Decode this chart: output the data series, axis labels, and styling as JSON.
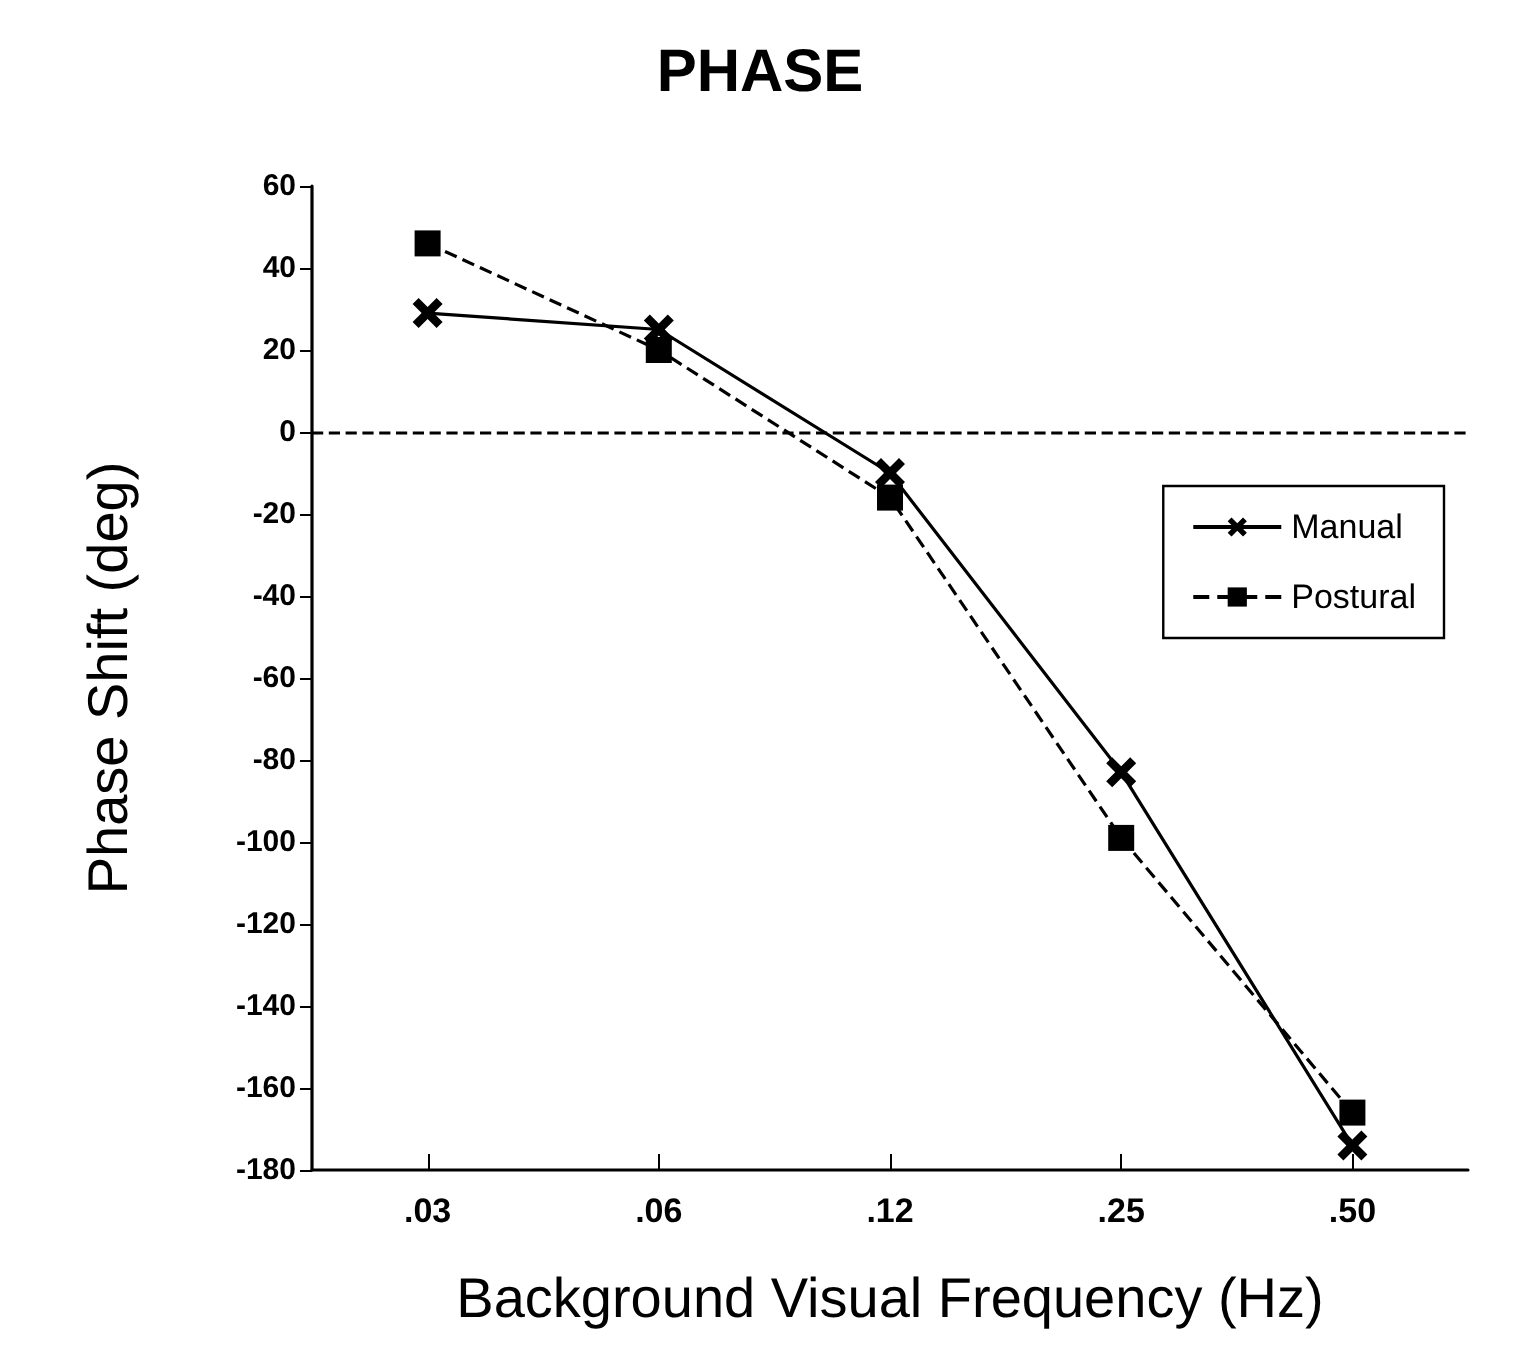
{
  "chart_data": {
    "type": "line",
    "title": "PHASE",
    "xlabel": "Background Visual Frequency (Hz)",
    "ylabel": "Phase Shift (deg)",
    "categories": [
      ".03",
      ".06",
      ".12",
      ".25",
      ".50"
    ],
    "series": [
      {
        "name": "Manual",
        "color": "#000000",
        "values": [
          29,
          25,
          -10,
          -83,
          -174
        ],
        "marker": "cross",
        "line_style": "solid"
      },
      {
        "name": "Postural",
        "color": "#000000",
        "values": [
          46,
          20,
          -16,
          -99,
          -166
        ],
        "marker": "square",
        "line_style": "dashed"
      }
    ],
    "ylim": [
      -180,
      60
    ],
    "yticks": [
      -180,
      -160,
      -140,
      -120,
      -100,
      -80,
      -60,
      -40,
      -20,
      0,
      20,
      40,
      60
    ],
    "ref_lines": [
      {
        "axis": "y",
        "value": 0,
        "line_style": "dashed",
        "color": "#000000"
      }
    ],
    "grid": false,
    "legend": "right"
  }
}
